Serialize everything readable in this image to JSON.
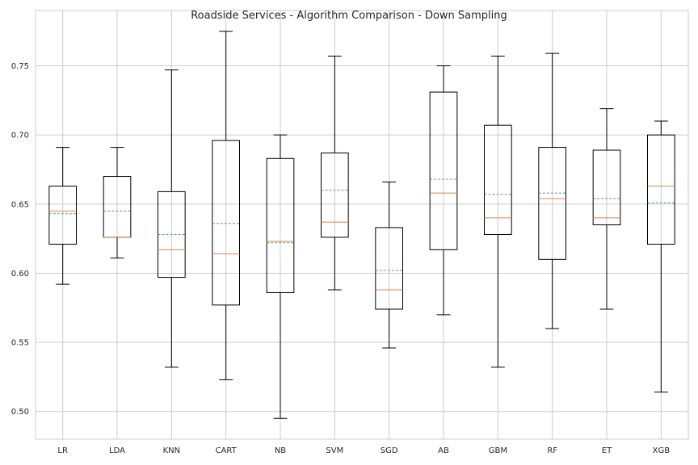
{
  "chart_data": {
    "type": "box",
    "title": "Roadside Services - Algorithm Comparison - Down Sampling",
    "xlabel": "",
    "ylabel": "",
    "ylim": [
      0.48,
      0.79
    ],
    "y_ticks": [
      0.5,
      0.55,
      0.6,
      0.65,
      0.7,
      0.75
    ],
    "y_tick_labels": [
      "0.50",
      "0.55",
      "0.60",
      "0.65",
      "0.70",
      "0.75"
    ],
    "grid": true,
    "categories": [
      "LR",
      "LDA",
      "KNN",
      "CART",
      "NB",
      "SVM",
      "SGD",
      "AB",
      "GBM",
      "RF",
      "ET",
      "XGB"
    ],
    "boxes": [
      {
        "name": "LR",
        "whisker_low": 0.592,
        "q1": 0.621,
        "median": 0.645,
        "q3": 0.663,
        "whisker_high": 0.691,
        "mean": 0.643
      },
      {
        "name": "LDA",
        "whisker_low": 0.611,
        "q1": 0.626,
        "median": 0.626,
        "q3": 0.67,
        "whisker_high": 0.691,
        "mean": 0.645
      },
      {
        "name": "KNN",
        "whisker_low": 0.532,
        "q1": 0.597,
        "median": 0.617,
        "q3": 0.659,
        "whisker_high": 0.747,
        "mean": 0.628
      },
      {
        "name": "CART",
        "whisker_low": 0.523,
        "q1": 0.577,
        "median": 0.614,
        "q3": 0.696,
        "whisker_high": 0.775,
        "mean": 0.636
      },
      {
        "name": "NB",
        "whisker_low": 0.495,
        "q1": 0.586,
        "median": 0.623,
        "q3": 0.683,
        "whisker_high": 0.7,
        "mean": 0.622
      },
      {
        "name": "SVM",
        "whisker_low": 0.588,
        "q1": 0.626,
        "median": 0.637,
        "q3": 0.687,
        "whisker_high": 0.757,
        "mean": 0.66
      },
      {
        "name": "SGD",
        "whisker_low": 0.546,
        "q1": 0.574,
        "median": 0.588,
        "q3": 0.633,
        "whisker_high": 0.666,
        "mean": 0.602
      },
      {
        "name": "AB",
        "whisker_low": 0.57,
        "q1": 0.617,
        "median": 0.658,
        "q3": 0.731,
        "whisker_high": 0.75,
        "mean": 0.668
      },
      {
        "name": "GBM",
        "whisker_low": 0.532,
        "q1": 0.628,
        "median": 0.64,
        "q3": 0.707,
        "whisker_high": 0.757,
        "mean": 0.657
      },
      {
        "name": "RF",
        "whisker_low": 0.56,
        "q1": 0.61,
        "median": 0.654,
        "q3": 0.691,
        "whisker_high": 0.759,
        "mean": 0.658
      },
      {
        "name": "ET",
        "whisker_low": 0.574,
        "q1": 0.635,
        "median": 0.64,
        "q3": 0.689,
        "whisker_high": 0.719,
        "mean": 0.654
      },
      {
        "name": "XGB",
        "whisker_low": 0.514,
        "q1": 0.621,
        "median": 0.663,
        "q3": 0.7,
        "whisker_high": 0.71,
        "mean": 0.651
      }
    ],
    "colors": {
      "box": "#000000",
      "median": "#dd8452",
      "mean": "#55a868",
      "grid": "#cccccc",
      "background": "#ffffff"
    }
  }
}
